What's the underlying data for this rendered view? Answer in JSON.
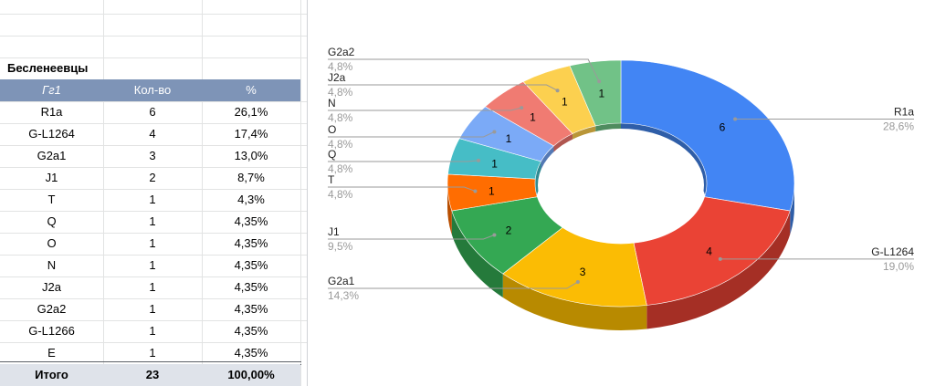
{
  "sheet": {
    "title": "Бесленеевцы",
    "headers": [
      "Гг1",
      "Кол-во",
      "%"
    ],
    "rows": [
      {
        "hg": "R1a",
        "count": "6",
        "pct": "26,1%"
      },
      {
        "hg": "G-L1264",
        "count": "4",
        "pct": "17,4%"
      },
      {
        "hg": "G2a1",
        "count": "3",
        "pct": "13,0%"
      },
      {
        "hg": "J1",
        "count": "2",
        "pct": "8,7%"
      },
      {
        "hg": "T",
        "count": "1",
        "pct": "4,3%"
      },
      {
        "hg": "Q",
        "count": "1",
        "pct": "4,35%"
      },
      {
        "hg": "O",
        "count": "1",
        "pct": "4,35%"
      },
      {
        "hg": "N",
        "count": "1",
        "pct": "4,35%"
      },
      {
        "hg": "J2a",
        "count": "1",
        "pct": "4,35%"
      },
      {
        "hg": "G2a2",
        "count": "1",
        "pct": "4,35%"
      },
      {
        "hg": "G-L1266",
        "count": "1",
        "pct": "4,35%"
      },
      {
        "hg": "E",
        "count": "1",
        "pct": "4,35%"
      }
    ],
    "total": {
      "label": "Итого",
      "count": "23",
      "pct": "100,00%"
    }
  },
  "chart_data": {
    "type": "pie",
    "style": "3d-donut",
    "categories": [
      "R1a",
      "G-L1264",
      "G2a1",
      "J1",
      "T",
      "Q",
      "O",
      "N",
      "J2a",
      "G2a2"
    ],
    "values": [
      6,
      4,
      3,
      2,
      1,
      1,
      1,
      1,
      1,
      1
    ],
    "percent_labels": [
      "28,6%",
      "19,0%",
      "14,3%",
      "9,5%",
      "4,8%",
      "4,8%",
      "4,8%",
      "4,8%",
      "4,8%",
      "4,8%"
    ],
    "colors": [
      "#4285f4",
      "#ea4335",
      "#fbbc04",
      "#34a853",
      "#ff6d01",
      "#46bdc6",
      "#7baaf7",
      "#f07b72",
      "#fcd04f",
      "#71c287"
    ],
    "side_colors": [
      "#2f5ea8",
      "#a52f25",
      "#b88a00",
      "#257a3b",
      "#b84e00",
      "#2f8a92",
      "#5479b5",
      "#b05650",
      "#b99638",
      "#4f8c5f"
    ],
    "legend": "none",
    "grid": false
  }
}
